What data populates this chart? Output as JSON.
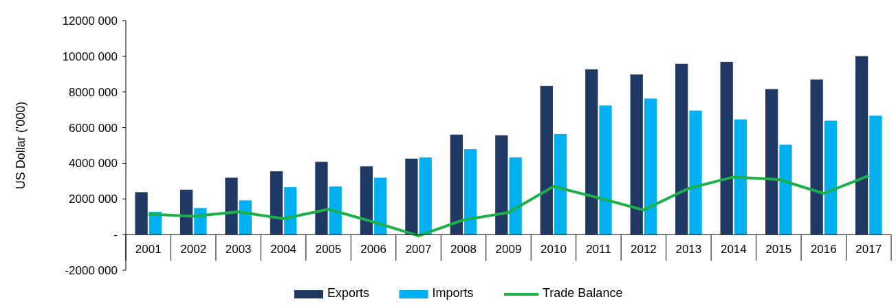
{
  "chart_data": {
    "type": "bar",
    "ylabel": "US Dollar ('000)",
    "categories": [
      "2001",
      "2002",
      "2003",
      "2004",
      "2005",
      "2006",
      "2007",
      "2008",
      "2009",
      "2010",
      "2011",
      "2012",
      "2013",
      "2014",
      "2015",
      "2016",
      "2017"
    ],
    "series": [
      {
        "name": "Exports",
        "color": "#203864",
        "values": [
          2380000,
          2520000,
          3190000,
          3550000,
          4080000,
          3830000,
          4260000,
          5610000,
          5570000,
          8340000,
          9270000,
          8980000,
          9580000,
          9690000,
          8160000,
          8700000,
          10010000
        ]
      },
      {
        "name": "Imports",
        "color": "#00b0f0",
        "values": [
          1280000,
          1490000,
          1920000,
          2660000,
          2700000,
          3190000,
          4330000,
          4790000,
          4330000,
          5640000,
          7240000,
          7630000,
          6960000,
          6460000,
          5040000,
          6390000,
          6670000
        ]
      },
      {
        "name": "Trade Balance",
        "type": "line",
        "color": "#1db04a",
        "values": [
          1140000,
          1030000,
          1280000,
          890000,
          1420000,
          710000,
          -70000,
          820000,
          1240000,
          2700000,
          2060000,
          1380000,
          2590000,
          3230000,
          3090000,
          2310000,
          3300000
        ]
      }
    ],
    "ylim": [
      -2000000,
      12000000
    ],
    "yticks": [
      {
        "value": -2000000,
        "label": "-2000 000"
      },
      {
        "value": 0,
        "label": "-"
      },
      {
        "value": 2000000,
        "label": "2000 000"
      },
      {
        "value": 4000000,
        "label": "4000 000"
      },
      {
        "value": 6000000,
        "label": "6000 000"
      },
      {
        "value": 8000000,
        "label": "8000 000"
      },
      {
        "value": 10000000,
        "label": "10000 000"
      },
      {
        "value": 12000000,
        "label": "12000 000"
      }
    ],
    "grid": false,
    "legend": "bottom",
    "marker": "none",
    "line_style": "solid"
  }
}
